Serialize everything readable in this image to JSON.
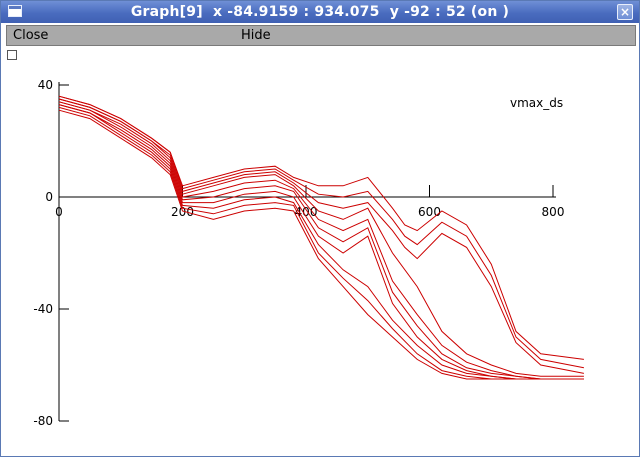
{
  "window": {
    "title": "Graph[9]  x -84.9159 : 934.075  y -92 : 52 (on )",
    "close_glyph": "×"
  },
  "menu": {
    "close_label": "Close",
    "hide_label": "Hide"
  },
  "colors": {
    "curve": "#cc0000",
    "axis": "#000000",
    "titlebar": "#4a6cbf"
  },
  "chart_data": {
    "type": "line",
    "title": "",
    "legend": [
      "vmax_ds"
    ],
    "legend_position": "top-right",
    "xlabel": "",
    "ylabel": "",
    "xlim": [
      0,
      850
    ],
    "ylim": [
      -80,
      40
    ],
    "x_ticks": [
      0,
      200,
      400,
      600,
      800
    ],
    "y_ticks": [
      40,
      0,
      -40,
      -80
    ],
    "grid": false,
    "series": [
      {
        "x": [
          0,
          50,
          100,
          150,
          180,
          200,
          250,
          300,
          350,
          380,
          420,
          460,
          500,
          540,
          580,
          620,
          660,
          700,
          740,
          780,
          850
        ],
        "y": [
          31,
          28,
          21,
          14,
          8,
          -5,
          -8,
          -5,
          -4,
          -5,
          -22,
          -32,
          -42,
          -50,
          -58,
          -63,
          -65,
          -65,
          -65,
          -65,
          -65
        ]
      },
      {
        "x": [
          0,
          50,
          100,
          150,
          180,
          200,
          250,
          300,
          350,
          380,
          420,
          460,
          500,
          540,
          580,
          620,
          660,
          700,
          740,
          780,
          850
        ],
        "y": [
          32,
          29,
          22,
          15,
          9,
          -4,
          -6,
          -3,
          -2,
          -3,
          -20,
          -29,
          -37,
          -47,
          -56,
          -62,
          -64,
          -65,
          -65,
          -65,
          -65
        ]
      },
      {
        "x": [
          0,
          50,
          100,
          150,
          180,
          200,
          250,
          300,
          350,
          380,
          420,
          460,
          500,
          540,
          580,
          620,
          660,
          700,
          740,
          780,
          850
        ],
        "y": [
          33,
          30,
          23,
          16,
          10,
          -3,
          -4,
          -1,
          0,
          -2,
          -17,
          -26,
          -32,
          -44,
          -53,
          -60,
          -63,
          -64,
          -65,
          -65,
          -65
        ]
      },
      {
        "x": [
          0,
          50,
          100,
          150,
          180,
          200,
          250,
          300,
          350,
          380,
          420,
          460,
          500,
          540,
          580,
          620,
          660,
          700,
          740,
          780,
          850
        ],
        "y": [
          33,
          30,
          24,
          17,
          11,
          -2,
          -2,
          1,
          2,
          0,
          -14,
          -20,
          -14,
          -38,
          -50,
          -58,
          -62,
          -64,
          -65,
          -65,
          -65
        ]
      },
      {
        "x": [
          0,
          50,
          100,
          150,
          180,
          200,
          250,
          300,
          350,
          380,
          420,
          460,
          500,
          540,
          580,
          620,
          660,
          700,
          740,
          780,
          850
        ],
        "y": [
          34,
          31,
          25,
          18,
          12,
          -1,
          0,
          3,
          4,
          2,
          -11,
          -16,
          -11,
          -34,
          -46,
          -56,
          -61,
          -63,
          -64,
          -65,
          -65
        ]
      },
      {
        "x": [
          0,
          50,
          100,
          150,
          180,
          200,
          250,
          300,
          350,
          380,
          420,
          460,
          500,
          540,
          580,
          620,
          660,
          700,
          740,
          780,
          850
        ],
        "y": [
          34,
          31,
          26,
          19,
          13,
          0,
          2,
          5,
          6,
          3,
          -8,
          -12,
          -8,
          -30,
          -42,
          -53,
          -59,
          -62,
          -64,
          -65,
          -65
        ]
      },
      {
        "x": [
          0,
          50,
          100,
          150,
          180,
          200,
          250,
          300,
          350,
          380,
          420,
          460,
          500,
          540,
          580,
          620,
          660,
          700,
          740,
          780,
          850
        ],
        "y": [
          35,
          32,
          27,
          20,
          14,
          1,
          4,
          7,
          8,
          4,
          -5,
          -8,
          -4,
          -20,
          -32,
          -48,
          -56,
          -60,
          -63,
          -64,
          -64
        ]
      },
      {
        "x": [
          0,
          50,
          100,
          150,
          180,
          200,
          250,
          300,
          350,
          380,
          420,
          460,
          500,
          540,
          560,
          580,
          620,
          660,
          700,
          740,
          780,
          850
        ],
        "y": [
          35,
          32,
          27,
          20,
          15,
          2,
          5,
          8,
          9,
          5,
          -2,
          -4,
          -2,
          -12,
          -18,
          -22,
          -13,
          -18,
          -32,
          -52,
          -60,
          -63
        ]
      },
      {
        "x": [
          0,
          50,
          100,
          150,
          180,
          200,
          250,
          300,
          350,
          380,
          420,
          460,
          500,
          540,
          560,
          580,
          620,
          660,
          700,
          740,
          780,
          850
        ],
        "y": [
          36,
          33,
          28,
          21,
          16,
          3,
          6,
          9,
          10,
          6,
          1,
          0,
          2,
          -8,
          -14,
          -17,
          -9,
          -14,
          -28,
          -50,
          -58,
          -61
        ]
      },
      {
        "x": [
          0,
          50,
          100,
          150,
          180,
          200,
          250,
          300,
          350,
          380,
          420,
          460,
          500,
          540,
          560,
          580,
          620,
          660,
          700,
          740,
          780,
          850
        ],
        "y": [
          36,
          33,
          28,
          21,
          16,
          4,
          7,
          10,
          11,
          7,
          4,
          4,
          7,
          -4,
          -10,
          -12,
          -5,
          -10,
          -24,
          -48,
          -56,
          -58
        ]
      }
    ]
  }
}
